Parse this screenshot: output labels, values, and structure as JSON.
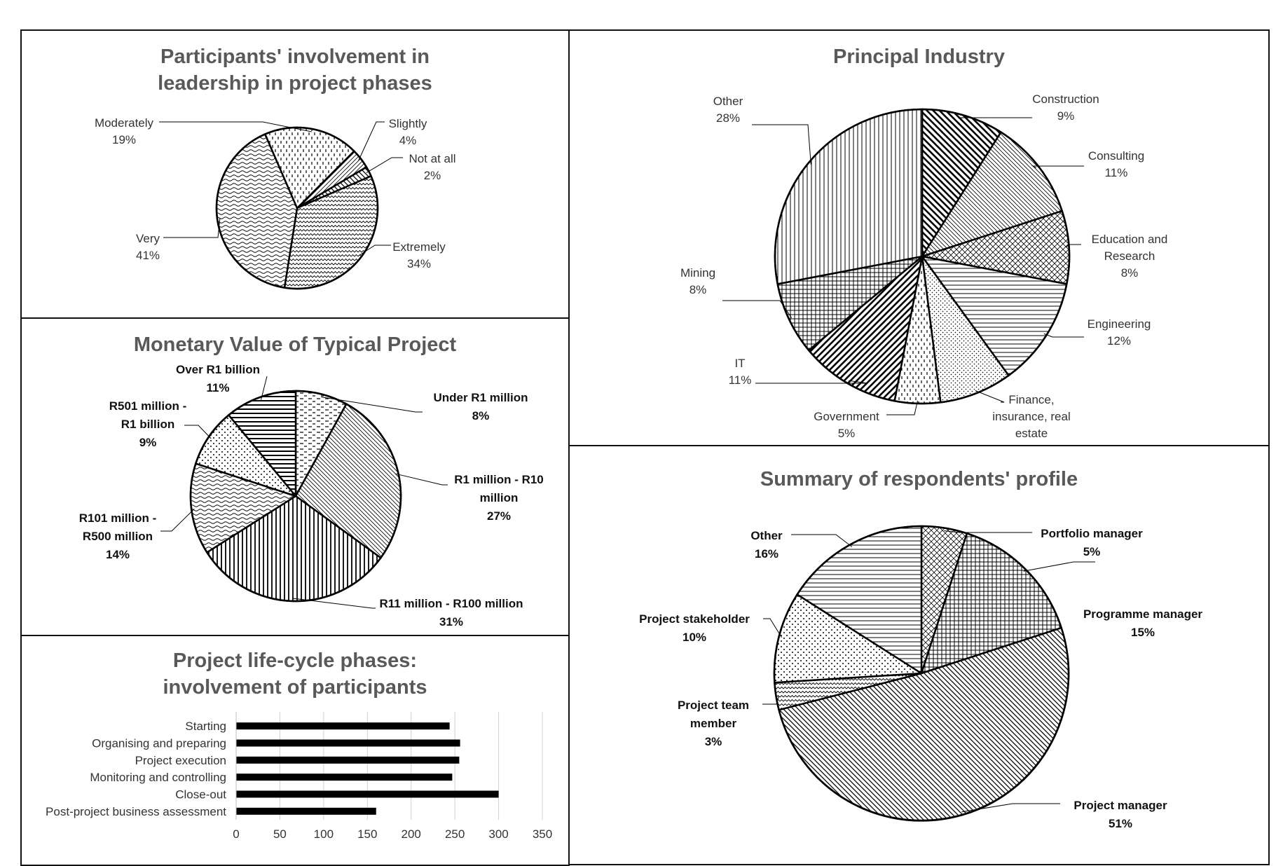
{
  "chart_data": [
    {
      "type": "pie",
      "title": "Participants' involvement in leadership in project phases",
      "slices": [
        {
          "label": "Slightly",
          "value": 4,
          "pct": "4%"
        },
        {
          "label": "Not at all",
          "value": 2,
          "pct": "2%"
        },
        {
          "label": "Extremely",
          "value": 34,
          "pct": "34%"
        },
        {
          "label": "Very",
          "value": 41,
          "pct": "41%"
        },
        {
          "label": "Moderately",
          "value": 19,
          "pct": "19%"
        }
      ],
      "legend": "none (data labels with leader lines)"
    },
    {
      "type": "pie",
      "title": "Monetary Value of Typical Project",
      "slices": [
        {
          "label": "Under R1 million",
          "value": 8,
          "pct": "8%"
        },
        {
          "label": "R1 million - R10 million",
          "value": 27,
          "pct": "27%"
        },
        {
          "label": "R11 million - R100 million",
          "value": 31,
          "pct": "31%"
        },
        {
          "label": "R101 million - R500 million",
          "value": 14,
          "pct": "14%"
        },
        {
          "label": "R501 million - R1 billion",
          "value": 9,
          "pct": "9%"
        },
        {
          "label": "Over R1 billion",
          "value": 11,
          "pct": "11%"
        }
      ],
      "legend": "none (data labels with leader lines)"
    },
    {
      "type": "bar",
      "orientation": "horizontal",
      "title": "Project life-cycle phases: involvement of participants",
      "categories": [
        "Starting",
        "Organising and preparing",
        "Project execution",
        "Monitoring and controlling",
        "Close-out",
        "Post-project business assessment"
      ],
      "values": [
        244,
        256,
        255,
        247,
        300,
        160
      ],
      "xlim": [
        0,
        350
      ],
      "xticks": [
        "0",
        "50",
        "100",
        "150",
        "200",
        "250",
        "300",
        "350"
      ],
      "grid": "vertical gridlines",
      "bar_color": "#000000"
    },
    {
      "type": "pie",
      "title": "Principal Industry",
      "slices": [
        {
          "label": "Construction",
          "value": 9,
          "pct": "9%"
        },
        {
          "label": "Consulting",
          "value": 11,
          "pct": "11%"
        },
        {
          "label": "Education and Research",
          "value": 8,
          "pct": "8%"
        },
        {
          "label": "Engineering",
          "value": 12,
          "pct": "12%"
        },
        {
          "label": "Finance, insurance, real estate",
          "value": 8,
          "pct": ""
        },
        {
          "label": "Government",
          "value": 5,
          "pct": "5%"
        },
        {
          "label": "IT",
          "value": 11,
          "pct": "11%"
        },
        {
          "label": "Mining",
          "value": 8,
          "pct": "8%"
        },
        {
          "label": "Other",
          "value": 28,
          "pct": "28%"
        }
      ],
      "legend": "none (data labels with leader lines)"
    },
    {
      "type": "pie",
      "title": "Summary of respondents' profile",
      "slices": [
        {
          "label": "Portfolio manager",
          "value": 5,
          "pct": "5%"
        },
        {
          "label": "Programme manager",
          "value": 15,
          "pct": "15%"
        },
        {
          "label": "Project manager",
          "value": 51,
          "pct": "51%"
        },
        {
          "label": "Project team member",
          "value": 3,
          "pct": "3%"
        },
        {
          "label": "Project stakeholder",
          "value": 10,
          "pct": "10%"
        },
        {
          "label": "Other",
          "value": 16,
          "pct": "16%"
        }
      ],
      "legend": "none (data labels with leader lines)"
    }
  ]
}
